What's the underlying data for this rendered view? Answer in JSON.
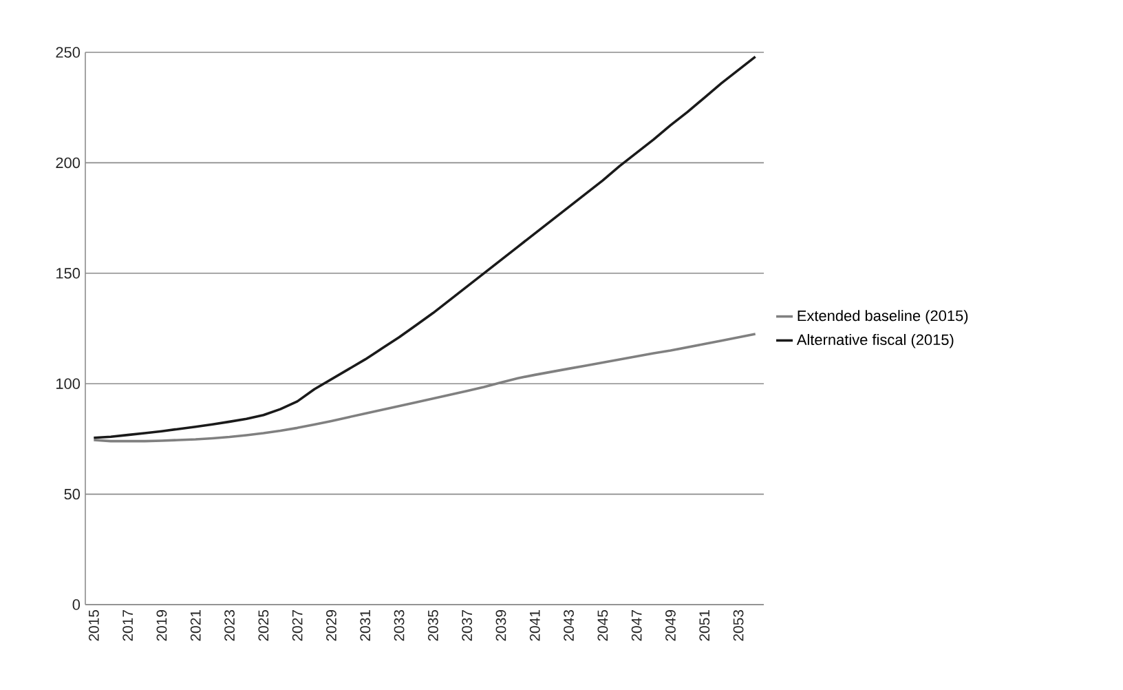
{
  "chart_data": {
    "type": "line",
    "x": [
      2015,
      2016,
      2017,
      2018,
      2019,
      2020,
      2021,
      2022,
      2023,
      2024,
      2025,
      2026,
      2027,
      2028,
      2029,
      2030,
      2031,
      2032,
      2033,
      2034,
      2035,
      2036,
      2037,
      2038,
      2039,
      2040,
      2041,
      2042,
      2043,
      2044,
      2045,
      2046,
      2047,
      2048,
      2049,
      2050,
      2051,
      2052,
      2053,
      2054
    ],
    "series": [
      {
        "name": "Extended baseline (2015)",
        "color": "#808080",
        "values": [
          74.5,
          74,
          74,
          74,
          74.2,
          74.5,
          74.8,
          75.3,
          75.9,
          76.7,
          77.6,
          78.7,
          80,
          81.5,
          83.1,
          84.8,
          86.5,
          88.2,
          89.9,
          91.6,
          93.3,
          95,
          96.7,
          98.5,
          100.5,
          102.5,
          104,
          105.4,
          106.8,
          108.2,
          109.6,
          111,
          112.4,
          113.8,
          115,
          116.5,
          118,
          119.5,
          121,
          122.5
        ]
      },
      {
        "name": "Alternative fiscal (2015)",
        "color": "#1a1a1a",
        "values": [
          75.5,
          76,
          76.8,
          77.6,
          78.5,
          79.5,
          80.5,
          81.6,
          82.8,
          84.1,
          85.8,
          88.5,
          92,
          97.5,
          102,
          106.5,
          111,
          116,
          121,
          126.5,
          132,
          138,
          144,
          150,
          156,
          162,
          168,
          174,
          180,
          186,
          192,
          198.5,
          204.5,
          210.5,
          217,
          223,
          229.5,
          236,
          242,
          248
        ]
      }
    ],
    "xlim": [
      2014.5,
      2054.5
    ],
    "xticks": [
      2015,
      2017,
      2019,
      2021,
      2023,
      2025,
      2027,
      2029,
      2031,
      2033,
      2035,
      2037,
      2039,
      2041,
      2043,
      2045,
      2047,
      2049,
      2051,
      2053
    ],
    "ylim": [
      0,
      250
    ],
    "yticks": [
      0,
      50,
      100,
      150,
      200,
      250
    ],
    "grid": "y",
    "legend": "right",
    "marker": "none",
    "line_style": "solid"
  }
}
